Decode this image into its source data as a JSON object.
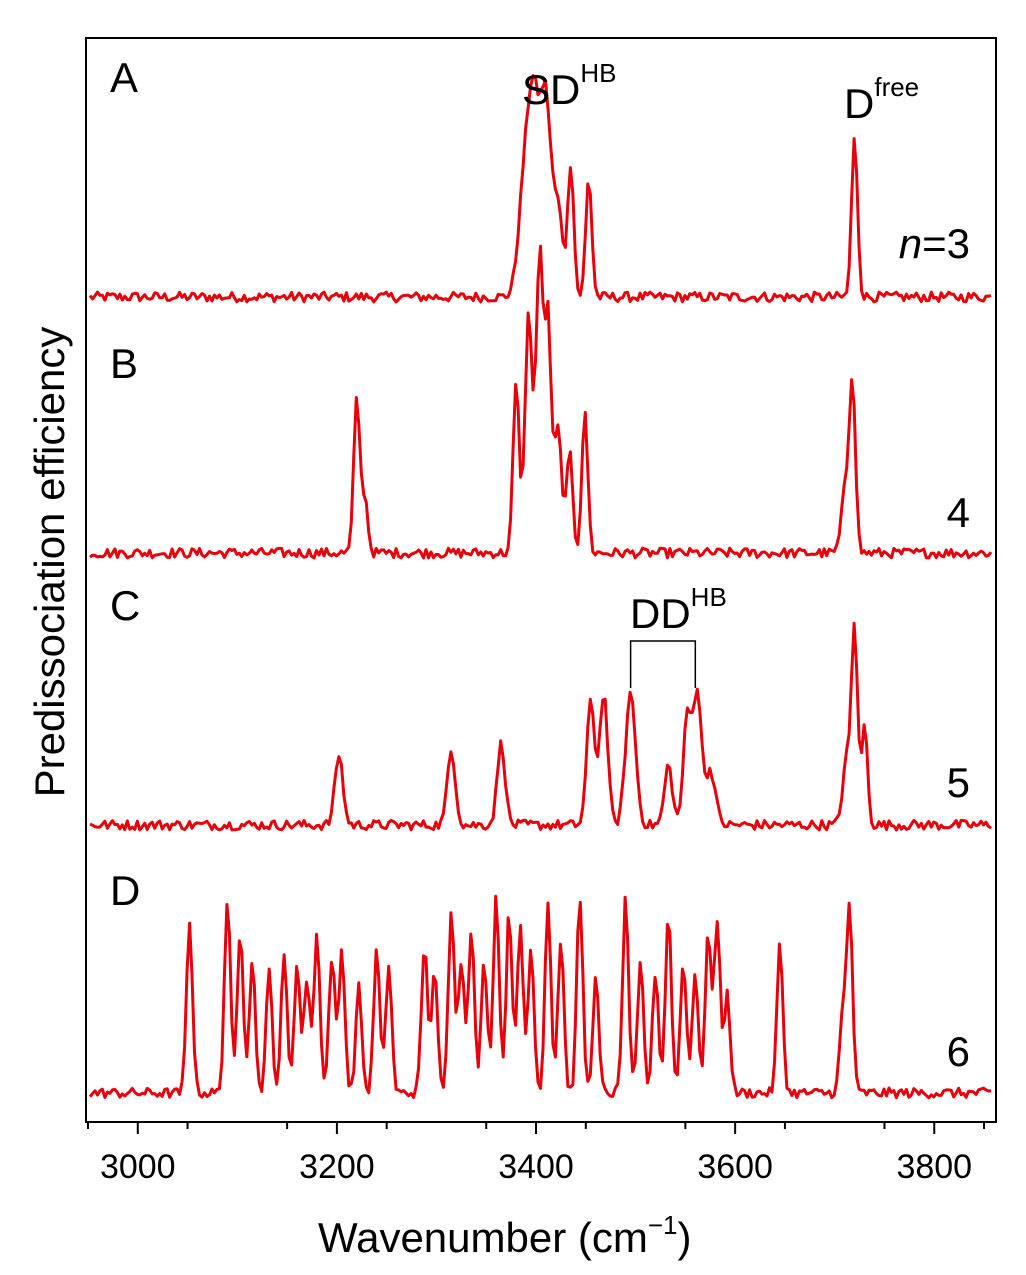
{
  "chart_data": {
    "type": "line",
    "xlabel": "Wavenumber (cm",
    "xlabel_sup": "−1",
    "xlabel_close": ")",
    "ylabel": "Predissociation efficiency",
    "xlim": [
      2950,
      3860
    ],
    "xticks": [
      3000,
      3200,
      3400,
      3600,
      3800
    ],
    "line_color": "#e8000b",
    "annotations": {
      "sdhb": {
        "base": "SD",
        "sup": "HB"
      },
      "dfree": {
        "base": "D",
        "sup": "free"
      },
      "ddhb": {
        "base": "DD",
        "sup": "HB"
      },
      "n_italic": "n",
      "n_rest": "=3"
    },
    "panels": [
      {
        "letter": "A",
        "n_label": "",
        "peaks": [
          {
            "x": 3398,
            "h": 0.84,
            "w": 6
          },
          {
            "x": 3410,
            "h": 0.82,
            "w": 5
          },
          {
            "x": 3388,
            "h": 0.45,
            "w": 6
          },
          {
            "x": 3422,
            "h": 0.4,
            "w": 5
          },
          {
            "x": 3435,
            "h": 0.6,
            "w": 3
          },
          {
            "x": 3453,
            "h": 0.54,
            "w": 3
          },
          {
            "x": 3720,
            "h": 0.72,
            "w": 3
          }
        ]
      },
      {
        "letter": "B",
        "n_label": "4",
        "peaks": [
          {
            "x": 3220,
            "h": 0.7,
            "w": 3
          },
          {
            "x": 3228,
            "h": 0.25,
            "w": 3
          },
          {
            "x": 3380,
            "h": 0.75,
            "w": 3
          },
          {
            "x": 3392,
            "h": 0.75,
            "w": 3
          },
          {
            "x": 3404,
            "h": 0.88,
            "w": 3
          },
          {
            "x": 3412,
            "h": 0.9,
            "w": 3
          },
          {
            "x": 3400,
            "h": 0.55,
            "w": 8
          },
          {
            "x": 3422,
            "h": 0.55,
            "w": 4
          },
          {
            "x": 3434,
            "h": 0.45,
            "w": 3
          },
          {
            "x": 3449,
            "h": 0.63,
            "w": 3
          },
          {
            "x": 3718,
            "h": 0.75,
            "w": 3
          },
          {
            "x": 3711,
            "h": 0.3,
            "w": 4
          }
        ]
      },
      {
        "letter": "C",
        "n_label": "5",
        "peaks": [
          {
            "x": 3202,
            "h": 0.32,
            "w": 4
          },
          {
            "x": 3315,
            "h": 0.34,
            "w": 4
          },
          {
            "x": 3365,
            "h": 0.37,
            "w": 4
          },
          {
            "x": 3455,
            "h": 0.56,
            "w": 4
          },
          {
            "x": 3468,
            "h": 0.6,
            "w": 4
          },
          {
            "x": 3495,
            "h": 0.6,
            "w": 5
          },
          {
            "x": 3533,
            "h": 0.27,
            "w": 4
          },
          {
            "x": 3552,
            "h": 0.5,
            "w": 4
          },
          {
            "x": 3562,
            "h": 0.6,
            "w": 4
          },
          {
            "x": 3575,
            "h": 0.25,
            "w": 5
          },
          {
            "x": 3720,
            "h": 0.88,
            "w": 3
          },
          {
            "x": 3730,
            "h": 0.45,
            "w": 3
          },
          {
            "x": 3712,
            "h": 0.3,
            "w": 4
          }
        ],
        "bracket": [
          3495,
          3560
        ]
      },
      {
        "letter": "D",
        "n_label": "6",
        "peaks": [
          {
            "x": 3052,
            "h": 0.78,
            "w": 3
          },
          {
            "x": 3090,
            "h": 0.88,
            "w": 3
          },
          {
            "x": 3103,
            "h": 0.75,
            "w": 3
          },
          {
            "x": 3115,
            "h": 0.6,
            "w": 3
          },
          {
            "x": 3132,
            "h": 0.55,
            "w": 3
          },
          {
            "x": 3147,
            "h": 0.62,
            "w": 3
          },
          {
            "x": 3160,
            "h": 0.58,
            "w": 3
          },
          {
            "x": 3170,
            "h": 0.52,
            "w": 3
          },
          {
            "x": 3180,
            "h": 0.72,
            "w": 3
          },
          {
            "x": 3195,
            "h": 0.62,
            "w": 3
          },
          {
            "x": 3205,
            "h": 0.65,
            "w": 3
          },
          {
            "x": 3222,
            "h": 0.48,
            "w": 3
          },
          {
            "x": 3240,
            "h": 0.65,
            "w": 3
          },
          {
            "x": 3252,
            "h": 0.58,
            "w": 3
          },
          {
            "x": 3288,
            "h": 0.67,
            "w": 3
          },
          {
            "x": 3298,
            "h": 0.55,
            "w": 3
          },
          {
            "x": 3315,
            "h": 0.85,
            "w": 3
          },
          {
            "x": 3325,
            "h": 0.6,
            "w": 3
          },
          {
            "x": 3335,
            "h": 0.75,
            "w": 3
          },
          {
            "x": 3348,
            "h": 0.6,
            "w": 3
          },
          {
            "x": 3360,
            "h": 0.9,
            "w": 3
          },
          {
            "x": 3373,
            "h": 0.82,
            "w": 3
          },
          {
            "x": 3384,
            "h": 0.75,
            "w": 3
          },
          {
            "x": 3395,
            "h": 0.66,
            "w": 3
          },
          {
            "x": 3412,
            "h": 0.87,
            "w": 3
          },
          {
            "x": 3425,
            "h": 0.7,
            "w": 3
          },
          {
            "x": 3444,
            "h": 0.89,
            "w": 3
          },
          {
            "x": 3460,
            "h": 0.52,
            "w": 3
          },
          {
            "x": 3490,
            "h": 0.88,
            "w": 3
          },
          {
            "x": 3505,
            "h": 0.58,
            "w": 3
          },
          {
            "x": 3520,
            "h": 0.55,
            "w": 3
          },
          {
            "x": 3533,
            "h": 0.82,
            "w": 3
          },
          {
            "x": 3548,
            "h": 0.6,
            "w": 3
          },
          {
            "x": 3560,
            "h": 0.55,
            "w": 3
          },
          {
            "x": 3573,
            "h": 0.72,
            "w": 3
          },
          {
            "x": 3582,
            "h": 0.77,
            "w": 3
          },
          {
            "x": 3592,
            "h": 0.45,
            "w": 3
          },
          {
            "x": 3645,
            "h": 0.67,
            "w": 3
          },
          {
            "x": 3715,
            "h": 0.84,
            "w": 3
          },
          {
            "x": 3708,
            "h": 0.35,
            "w": 3
          }
        ]
      }
    ]
  }
}
